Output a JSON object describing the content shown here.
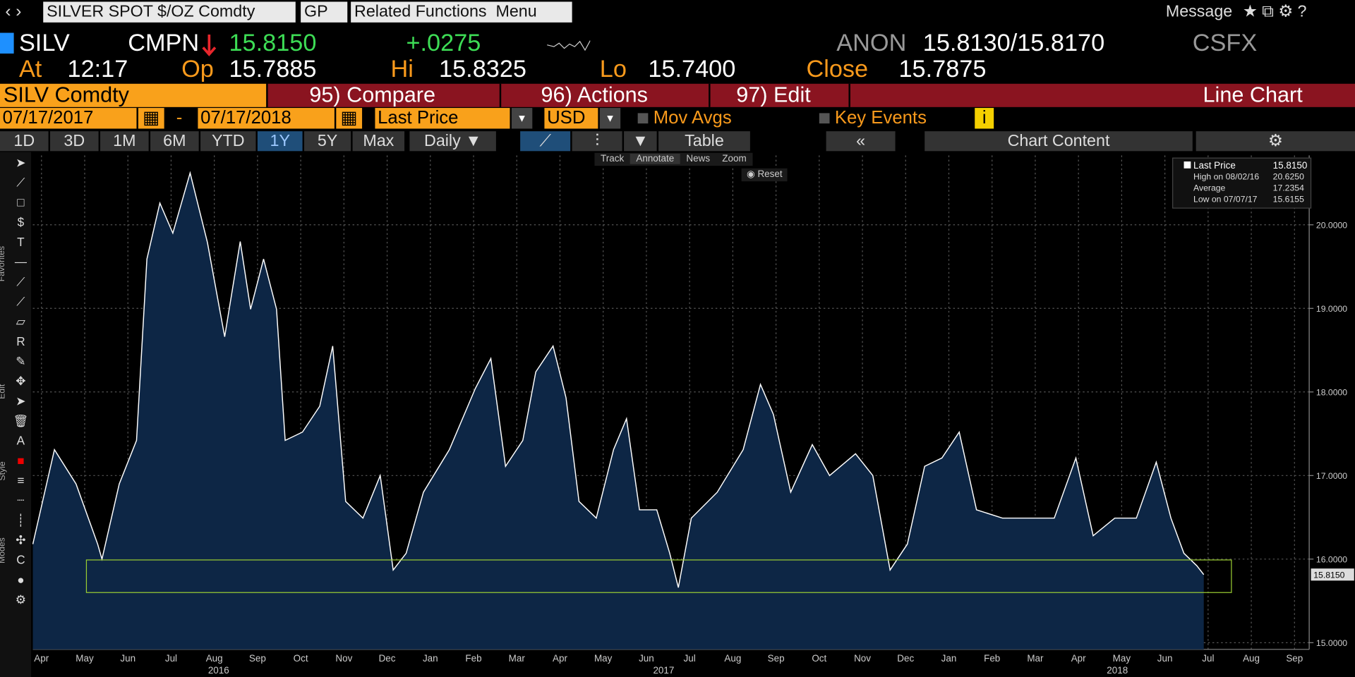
{
  "toolbar": {
    "security": "SILVER SPOT $/OZ Comdty",
    "gp": "GP",
    "related": "Related Functions  Menu",
    "message": "Message"
  },
  "quote": {
    "ticker": "SILV",
    "source": "CMPN",
    "last": "15.8150",
    "change": "+.0275",
    "anon": "ANON",
    "bid_ask": "15.8130/15.8170",
    "dealer": "CSFX"
  },
  "quote_line2": {
    "at_label": "At",
    "time": "12:17",
    "op_label": "Op",
    "open": "15.7885",
    "hi_label": "Hi",
    "high": "15.8325",
    "lo_label": "Lo",
    "low": "15.7400",
    "close_label": "Close",
    "close": "15.7875"
  },
  "menu": {
    "security": "SILV Comdty",
    "compare": "95) Compare",
    "actions": "96) Actions",
    "edit": "97) Edit",
    "chart_type": "Line Chart"
  },
  "settings": {
    "start_date": "07/17/2017",
    "dash": "-",
    "end_date": "07/17/2018",
    "field": "Last Price",
    "currency": "USD",
    "mov_avgs": "Mov Avgs",
    "key_events": "Key Events"
  },
  "periods": [
    "1D",
    "3D",
    "1M",
    "6M",
    "YTD",
    "1Y",
    "5Y",
    "Max"
  ],
  "frequency": "Daily",
  "table": "Table",
  "chart_content": "Chart Content",
  "chart_tools": [
    "Track",
    "Annotate",
    "News",
    "Zoom"
  ],
  "reset": "Reset",
  "side_tabs": [
    "Favorites",
    "Edit",
    "Style",
    "Modes"
  ],
  "chart_data": {
    "type": "line",
    "series": [
      {
        "name": "Last Price",
        "color": "#ffffff",
        "x": [
          -0.2,
          0.3,
          0.8,
          1.3,
          1.4,
          1.8,
          2.2,
          2.44,
          2.74,
          3.04,
          3.44,
          3.84,
          4.24,
          4.6,
          4.84,
          5.14,
          5.44,
          5.64,
          6.04,
          6.44,
          6.74,
          7.04,
          7.44,
          7.84,
          8.14,
          8.44,
          8.84,
          9.44,
          10.04,
          10.4,
          10.74,
          11.14,
          11.44,
          11.84,
          12.14,
          12.44,
          12.84,
          13.24,
          13.54,
          13.84,
          14.24,
          14.54,
          14.74,
          15.04,
          15.64,
          16.24,
          16.64,
          16.94,
          17.34,
          17.84,
          18.24,
          18.84,
          19.24,
          19.64,
          20.04,
          20.44,
          20.84,
          21.24,
          21.64,
          22.24,
          22.84,
          23.44,
          23.94,
          24.34,
          24.84,
          25.34,
          25.8,
          26.14,
          26.44,
          26.74,
          26.9
        ],
        "values": [
          16.18,
          17.31,
          16.9,
          16.18,
          16.0,
          16.9,
          17.42,
          19.59,
          20.26,
          19.9,
          20.62,
          19.79,
          18.66,
          19.8,
          18.99,
          19.59,
          18.99,
          17.42,
          17.52,
          17.83,
          18.55,
          16.69,
          16.49,
          17.0,
          15.87,
          16.07,
          16.8,
          17.31,
          18.04,
          18.4,
          17.11,
          17.42,
          18.24,
          18.55,
          17.93,
          16.69,
          16.49,
          17.31,
          17.68,
          16.59,
          16.59,
          16.07,
          15.66,
          16.49,
          16.8,
          17.31,
          18.09,
          17.73,
          16.8,
          17.37,
          17.0,
          17.26,
          17.0,
          15.87,
          16.18,
          17.11,
          17.21,
          17.52,
          16.59,
          16.49,
          16.49,
          16.49,
          17.21,
          16.28,
          16.49,
          16.49,
          17.16,
          16.49,
          16.07,
          15.92,
          15.815
        ]
      }
    ],
    "xlim": [
      -0.2,
      29.34
    ],
    "xticks": [
      {
        "value": 0,
        "label": "Apr"
      },
      {
        "value": 1,
        "label": "May"
      },
      {
        "value": 2,
        "label": "Jun"
      },
      {
        "value": 3,
        "label": "Jul"
      },
      {
        "value": 4,
        "label": "Aug"
      },
      {
        "value": 5,
        "label": "Sep"
      },
      {
        "value": 6,
        "label": "Oct"
      },
      {
        "value": 7,
        "label": "Nov"
      },
      {
        "value": 8,
        "label": "Dec"
      },
      {
        "value": 9,
        "label": "Jan"
      },
      {
        "value": 10,
        "label": "Feb"
      },
      {
        "value": 11,
        "label": "Mar"
      },
      {
        "value": 12,
        "label": "Apr"
      },
      {
        "value": 13,
        "label": "May"
      },
      {
        "value": 14,
        "label": "Jun"
      },
      {
        "value": 15,
        "label": "Jul"
      },
      {
        "value": 16,
        "label": "Aug"
      },
      {
        "value": 17,
        "label": "Sep"
      },
      {
        "value": 18,
        "label": "Oct"
      },
      {
        "value": 19,
        "label": "Nov"
      },
      {
        "value": 20,
        "label": "Dec"
      },
      {
        "value": 21,
        "label": "Jan"
      },
      {
        "value": 22,
        "label": "Feb"
      },
      {
        "value": 23,
        "label": "Mar"
      },
      {
        "value": 24,
        "label": "Apr"
      },
      {
        "value": 25,
        "label": "May"
      },
      {
        "value": 26,
        "label": "Jun"
      },
      {
        "value": 27,
        "label": "Jul"
      },
      {
        "value": 28,
        "label": "Aug"
      },
      {
        "value": 29,
        "label": "Sep"
      }
    ],
    "year_ticks": [
      {
        "value": 4.1,
        "label": "2016"
      },
      {
        "value": 14.4,
        "label": "2017"
      },
      {
        "value": 24.9,
        "label": "2018"
      }
    ],
    "ylim": [
      14.92,
      20.83
    ],
    "yticks": [
      {
        "value": 15,
        "label": "15.0000"
      },
      {
        "value": 16,
        "label": "16.0000"
      },
      {
        "value": 17,
        "label": "17.0000"
      },
      {
        "value": 18,
        "label": "18.0000"
      },
      {
        "value": 19,
        "label": "19.0000"
      },
      {
        "value": 20,
        "label": "20.0000"
      }
    ],
    "grid": true,
    "highlight": {
      "x": [
        1.04,
        27.54
      ],
      "y": [
        15.6,
        15.99
      ],
      "color": "#9acd32"
    },
    "last_label": {
      "value": 15.815,
      "label": "15.8150"
    },
    "stats": [
      {
        "label": "High on 08/02/16",
        "value": 20.625,
        "value_label": "20.6250"
      },
      {
        "label": "Average",
        "value": 17.2354,
        "value_label": "17.2354"
      },
      {
        "label": "Low on 07/07/17",
        "value": 15.6155,
        "value_label": "15.6155"
      }
    ]
  }
}
